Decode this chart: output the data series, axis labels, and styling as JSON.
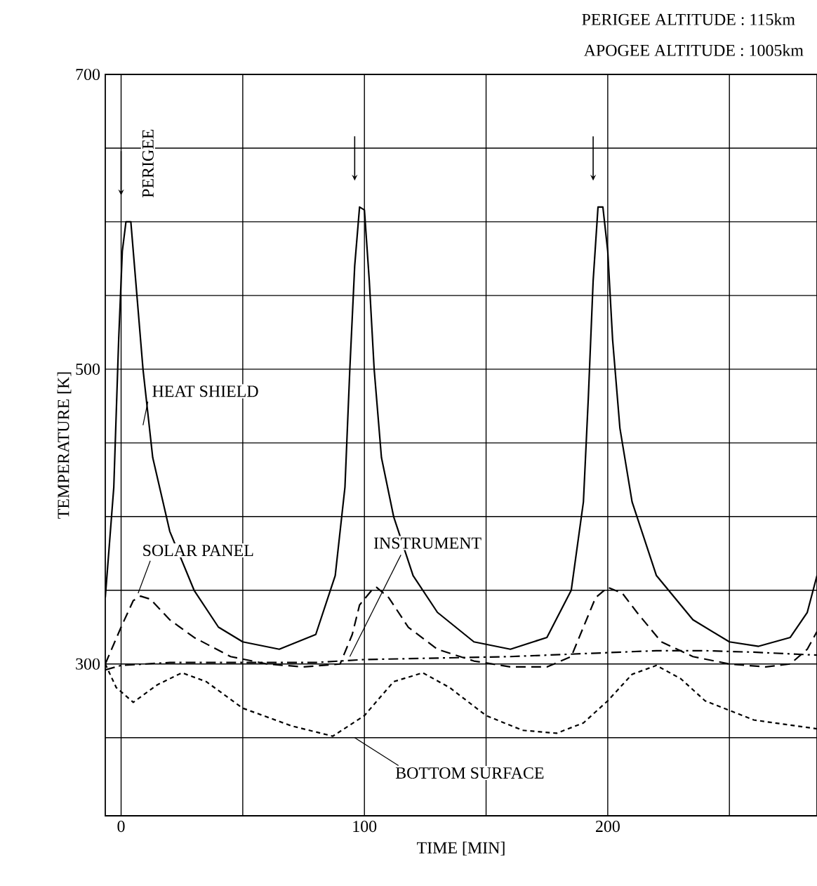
{
  "chart_data": {
    "type": "line",
    "title": "PERIGEE ALTITUDE : 115km",
    "subtitle": "APOGEE  ALTITUDE : 1005km",
    "xlabel": "TIME [MIN]",
    "ylabel": "TEMPERATURE [K]",
    "annotations": [
      "PERIGEE"
    ],
    "xlim": [
      -6.5,
      286
    ],
    "ylim": [
      197,
      700
    ],
    "xticks": [
      0,
      {
        "value": 50,
        "label": null
      },
      100,
      {
        "value": 150,
        "label": null
      },
      200,
      {
        "value": 250,
        "label": null
      }
    ],
    "yticks": [
      {
        "value": 250,
        "label": null
      },
      300,
      {
        "value": 350,
        "label": null
      },
      {
        "value": 400,
        "label": null
      },
      {
        "value": 450,
        "label": null
      },
      500,
      {
        "value": 550,
        "label": null
      },
      {
        "value": 600,
        "label": null
      },
      {
        "value": 650,
        "label": null
      },
      700
    ],
    "grid": true,
    "legend": false,
    "marker": "none",
    "series": [
      {
        "name": "HEAT SHIELD",
        "color": "#000000",
        "line_style": "solid",
        "x": [
          -6.5,
          -3,
          -1,
          0.5,
          2,
          4,
          6,
          9,
          13,
          20,
          30,
          40,
          50,
          65,
          80,
          88,
          92,
          94,
          96,
          98,
          100,
          102,
          104,
          107,
          112,
          120,
          130,
          145,
          160,
          175,
          185,
          190,
          192,
          194,
          196,
          198,
          200,
          202,
          205,
          210,
          220,
          235,
          250,
          262,
          275,
          282,
          286
        ],
        "values": [
          345,
          420,
          520,
          580,
          600,
          600,
          560,
          500,
          440,
          390,
          350,
          325,
          315,
          310,
          320,
          360,
          420,
          500,
          570,
          610,
          608,
          560,
          500,
          440,
          400,
          360,
          335,
          315,
          310,
          318,
          350,
          410,
          480,
          560,
          610,
          610,
          580,
          520,
          460,
          410,
          360,
          330,
          315,
          312,
          318,
          335,
          360
        ]
      },
      {
        "name": "SOLAR PANEL",
        "color": "#000000",
        "line_style": "dashed",
        "x": [
          -6.5,
          0,
          5,
          8,
          12,
          20,
          30,
          45,
          60,
          75,
          90,
          95,
          98,
          103,
          105,
          110,
          118,
          130,
          145,
          160,
          175,
          185,
          190,
          195,
          200,
          206,
          212,
          222,
          235,
          250,
          265,
          275,
          282,
          286
        ],
        "values": [
          300,
          325,
          343,
          346,
          344,
          330,
          318,
          305,
          300,
          298,
          300,
          320,
          340,
          350,
          352,
          345,
          325,
          310,
          302,
          298,
          298,
          305,
          325,
          345,
          352,
          348,
          335,
          315,
          305,
          300,
          298,
          300,
          310,
          322
        ]
      },
      {
        "name": "INSTRUMENT",
        "color": "#000000",
        "line_style": "dashdot",
        "x": [
          -6.5,
          0,
          20,
          50,
          80,
          100,
          130,
          160,
          190,
          220,
          240,
          260,
          286
        ],
        "values": [
          296,
          299,
          301,
          301,
          301,
          303,
          304,
          305,
          307,
          309,
          309,
          308,
          306
        ]
      },
      {
        "name": "BOTTOM SURFACE",
        "color": "#000000",
        "line_style": "dotted",
        "x": [
          -6.5,
          -2,
          5,
          15,
          25,
          35,
          50,
          70,
          87,
          100,
          112,
          124,
          135,
          150,
          165,
          179,
          190,
          200,
          210,
          220,
          230,
          240,
          260,
          286
        ],
        "values": [
          300,
          284,
          274,
          286,
          294,
          288,
          270,
          258,
          251,
          265,
          288,
          294,
          284,
          265,
          255,
          253,
          260,
          275,
          293,
          299,
          290,
          275,
          262,
          256
        ]
      }
    ]
  }
}
